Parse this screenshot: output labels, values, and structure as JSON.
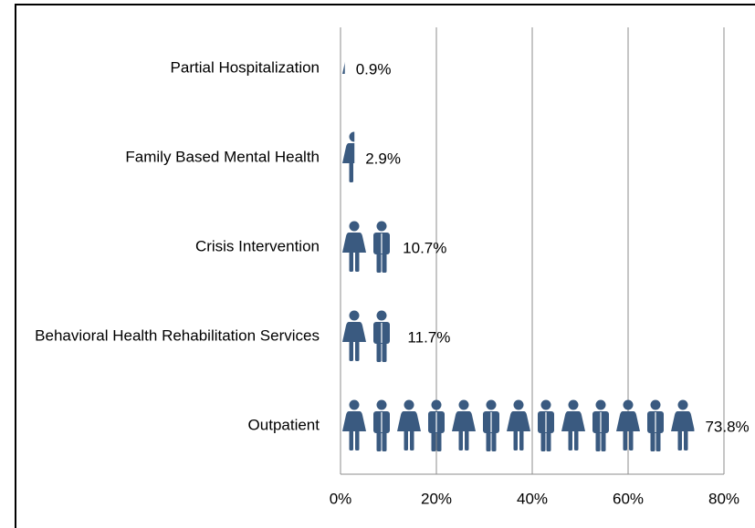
{
  "chart_data": {
    "type": "pictograph-bar",
    "orientation": "horizontal",
    "categories": [
      "Partial Hospitalization",
      "Family Based Mental Health",
      "Crisis Intervention",
      "Behavioral Health Rehabilitation Services",
      "Outpatient"
    ],
    "values": [
      0.9,
      2.9,
      10.7,
      11.7,
      73.8
    ],
    "value_labels": [
      "0.9%",
      "2.9%",
      "10.7%",
      "11.7%",
      "73.8%"
    ],
    "color": "#3a5a80",
    "xlim": [
      0,
      80
    ],
    "xticks": [
      {
        "value": 0,
        "label": "0%"
      },
      {
        "value": 20,
        "label": "20%"
      },
      {
        "value": 40,
        "label": "40%"
      },
      {
        "value": 60,
        "label": "60%"
      },
      {
        "value": 80,
        "label": "80%"
      }
    ],
    "grid": true
  }
}
